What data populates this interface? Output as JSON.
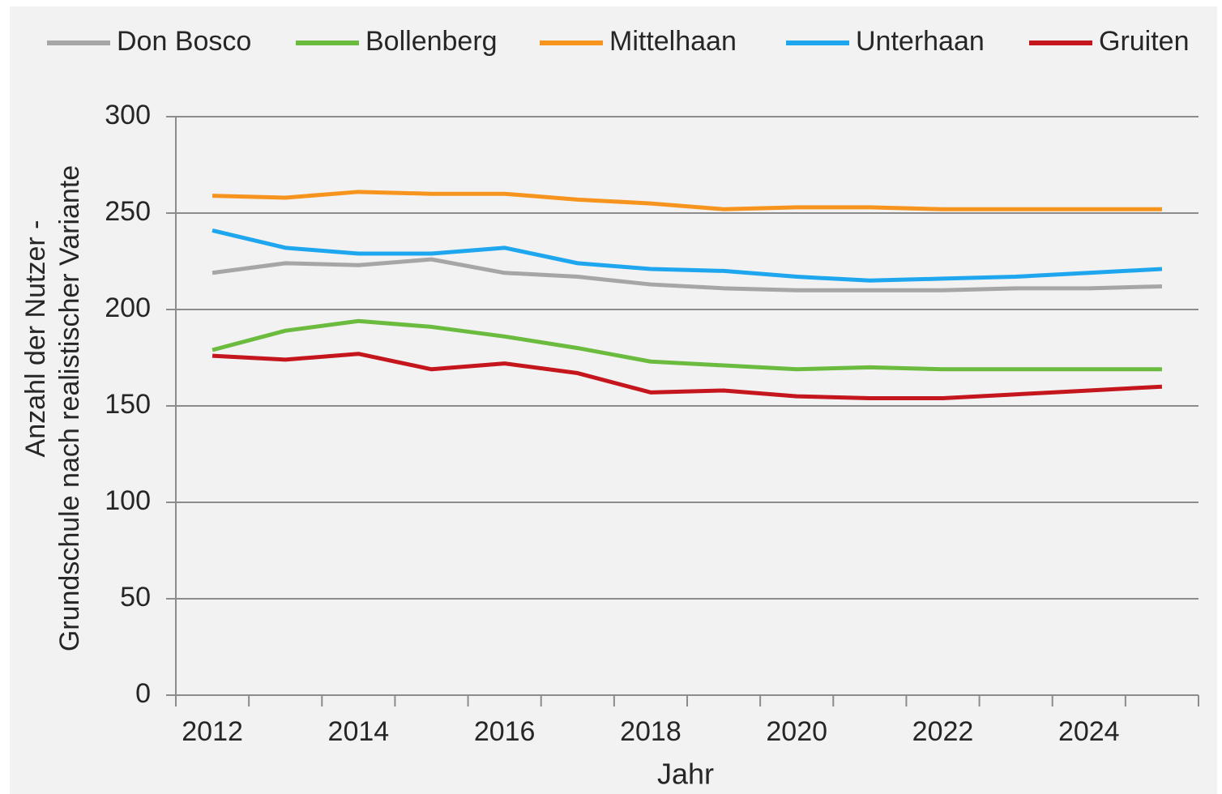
{
  "chart_data": {
    "type": "line",
    "x_label": "Jahr",
    "y_label": [
      "Anzahl der Nutzer -",
      "Grundschule nach realistischer Variante"
    ],
    "categories": [
      "2012",
      null,
      "2014",
      null,
      "2016",
      null,
      "2018",
      null,
      "2020",
      null,
      "2022",
      null,
      "2024",
      null
    ],
    "series": [
      {
        "name": "Don Bosco",
        "color": "#a6a6a6",
        "values": [
          219,
          224,
          223,
          226,
          219,
          217,
          213,
          211,
          210,
          210,
          210,
          211,
          211,
          212
        ]
      },
      {
        "name": "Bollenberg",
        "color": "#6abb3e",
        "values": [
          179,
          189,
          194,
          191,
          186,
          180,
          173,
          171,
          169,
          170,
          169,
          169,
          169,
          169
        ]
      },
      {
        "name": "Mittelhaan",
        "color": "#f7941d",
        "values": [
          259,
          258,
          261,
          260,
          260,
          257,
          255,
          252,
          253,
          253,
          252,
          252,
          252,
          252
        ]
      },
      {
        "name": "Unterhaan",
        "color": "#1ea7ef",
        "values": [
          241,
          232,
          229,
          229,
          232,
          224,
          221,
          220,
          217,
          215,
          216,
          217,
          219,
          221
        ]
      },
      {
        "name": "Gruiten",
        "color": "#c4161c",
        "values": [
          176,
          174,
          177,
          169,
          172,
          167,
          157,
          158,
          155,
          154,
          154,
          156,
          158,
          160
        ]
      }
    ],
    "ylim": [
      0,
      300
    ],
    "yticks": [
      0,
      50,
      100,
      150,
      200,
      250,
      300
    ],
    "grid": true,
    "legend": "top"
  }
}
